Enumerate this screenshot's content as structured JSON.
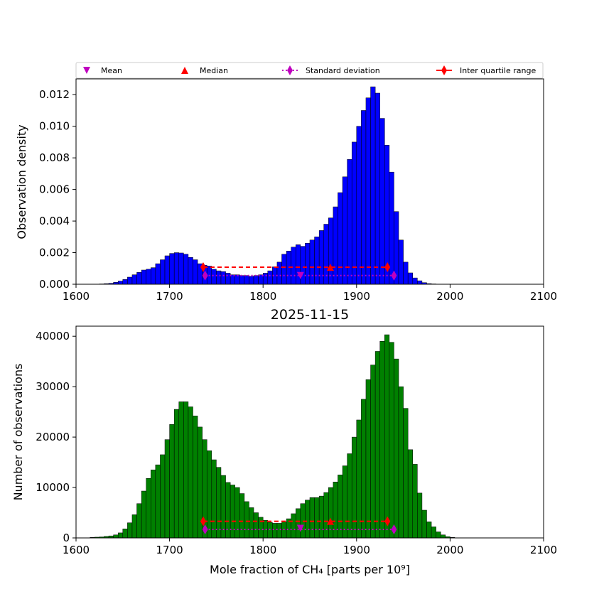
{
  "chart_data": [
    {
      "type": "bar",
      "panel": "top",
      "ylabel": "Observation density",
      "xlim": [
        1600,
        2100
      ],
      "ylim": [
        0,
        0.013
      ],
      "x_ticks": [
        "1600",
        "1700",
        "1800",
        "1900",
        "2000",
        "2100"
      ],
      "y_ticks": [
        "0.000",
        "0.002",
        "0.004",
        "0.006",
        "0.008",
        "0.010",
        "0.012"
      ],
      "y_tick_values": [
        0,
        0.002,
        0.004,
        0.006,
        0.008,
        0.01,
        0.012
      ],
      "bar_color": "#0000ff",
      "bin_start": 1610,
      "bin_width": 5,
      "values": [
        0,
        0,
        0,
        2e-05,
        4e-05,
        6e-05,
        0.00012,
        0.0002,
        0.0003,
        0.00045,
        0.0006,
        0.00075,
        0.0009,
        0.00095,
        0.00105,
        0.0013,
        0.00155,
        0.0018,
        0.00195,
        0.002,
        0.00198,
        0.0019,
        0.0017,
        0.00155,
        0.0013,
        0.0012,
        0.00115,
        0.00095,
        0.00085,
        0.0008,
        0.0007,
        0.0006,
        0.0006,
        0.00055,
        0.00055,
        0.0005,
        0.00055,
        0.0006,
        0.0007,
        0.00085,
        0.0011,
        0.0014,
        0.0019,
        0.0021,
        0.00235,
        0.0025,
        0.0024,
        0.0026,
        0.0028,
        0.003,
        0.0034,
        0.0038,
        0.0042,
        0.0049,
        0.0058,
        0.0068,
        0.0079,
        0.009,
        0.01,
        0.011,
        0.0118,
        0.0125,
        0.0121,
        0.0105,
        0.0088,
        0.0071,
        0.0046,
        0.0028,
        0.0014,
        0.00072,
        0.0004,
        0.00022,
        0.0001,
        4e-05,
        2e-05,
        0,
        0,
        0,
        0
      ],
      "stats": {
        "mean": {
          "x": 1840,
          "y": 0.00055
        },
        "median": {
          "x": 1872,
          "y": 0.00108
        },
        "std": {
          "x": [
            1738,
            1940
          ],
          "y": 0.00055
        },
        "iqr": {
          "x": [
            1736,
            1933
          ],
          "y": 0.00108
        }
      }
    },
    {
      "type": "bar",
      "panel": "bottom",
      "title": "2025-11-15",
      "xlabel": "Mole fraction of CH₄ [parts per 10⁹]",
      "ylabel": "Number of observations",
      "xlim": [
        1600,
        2100
      ],
      "ylim": [
        0,
        42000
      ],
      "x_ticks": [
        "1600",
        "1700",
        "1800",
        "1900",
        "2000",
        "2100"
      ],
      "y_ticks": [
        "0",
        "10000",
        "20000",
        "30000",
        "40000"
      ],
      "y_tick_values": [
        0,
        10000,
        20000,
        30000,
        40000
      ],
      "bar_color": "#008000",
      "bin_start": 1610,
      "bin_width": 5,
      "values": [
        0,
        100,
        150,
        200,
        300,
        400,
        600,
        1000,
        1800,
        3000,
        4600,
        6800,
        9300,
        11800,
        13500,
        14500,
        16500,
        19500,
        22500,
        25500,
        27000,
        27000,
        26000,
        24200,
        22000,
        19500,
        17300,
        15500,
        14000,
        12400,
        11000,
        10500,
        10000,
        8800,
        7200,
        6000,
        5000,
        4100,
        3500,
        3100,
        2900,
        2900,
        3200,
        3800,
        4800,
        5800,
        6800,
        7500,
        8000,
        8000,
        8300,
        9000,
        10000,
        11100,
        12500,
        14300,
        16700,
        20000,
        23400,
        27500,
        31400,
        34300,
        37000,
        39000,
        40300,
        38800,
        35500,
        30000,
        25700,
        17500,
        14600,
        8900,
        5500,
        3200,
        2200,
        1200,
        600,
        250,
        100,
        0
      ],
      "stats": {
        "mean": {
          "x": 1840,
          "y": 1900
        },
        "median": {
          "x": 1872,
          "y": 3300
        },
        "std": {
          "x": [
            1738,
            1940
          ],
          "y": 1700
        },
        "iqr": {
          "x": [
            1736,
            1933
          ],
          "y": 3300
        }
      }
    }
  ],
  "legend": {
    "placement": "top, above upper panel",
    "items": [
      {
        "label": "Mean",
        "marker": "triangle-down",
        "color": "#bf00bf"
      },
      {
        "label": "Median",
        "marker": "triangle-up",
        "color": "#ff0000"
      },
      {
        "label": "Standard deviation",
        "marker": "diamond-dotted",
        "color": "#bf00bf"
      },
      {
        "label": "Inter quartile range",
        "marker": "diamond-line",
        "color": "#ff0000"
      }
    ]
  },
  "colors": {
    "mean": "#bf00bf",
    "std": "#bf00bf",
    "median": "#ff0000",
    "iqr": "#ff0000"
  }
}
